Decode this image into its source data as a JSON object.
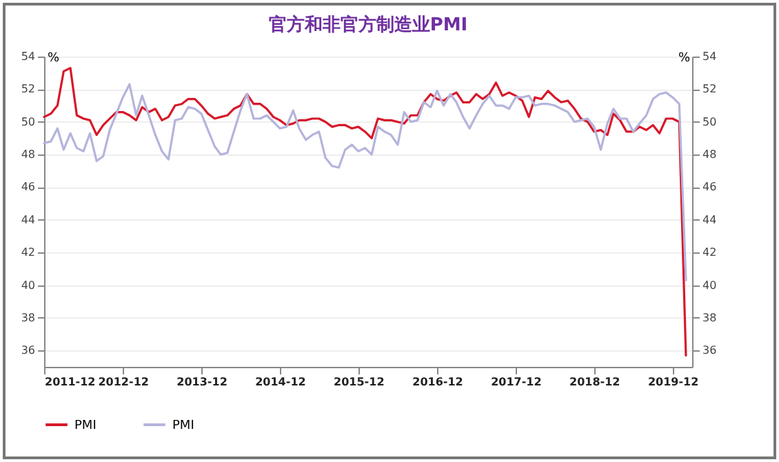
{
  "chart_data": {
    "type": "line",
    "title": "官方和非官方制造业PMI",
    "ylabel": "%",
    "y2label": "%",
    "x": [
      "2011-12",
      "2012-01",
      "2012-02",
      "2012-03",
      "2012-04",
      "2012-05",
      "2012-06",
      "2012-07",
      "2012-08",
      "2012-09",
      "2012-10",
      "2012-11",
      "2012-12",
      "2013-01",
      "2013-02",
      "2013-03",
      "2013-04",
      "2013-05",
      "2013-06",
      "2013-07",
      "2013-08",
      "2013-09",
      "2013-10",
      "2013-11",
      "2013-12",
      "2014-01",
      "2014-02",
      "2014-03",
      "2014-04",
      "2014-05",
      "2014-06",
      "2014-07",
      "2014-08",
      "2014-09",
      "2014-10",
      "2014-11",
      "2014-12",
      "2015-01",
      "2015-02",
      "2015-03",
      "2015-04",
      "2015-05",
      "2015-06",
      "2015-07",
      "2015-08",
      "2015-09",
      "2015-10",
      "2015-11",
      "2015-12",
      "2016-01",
      "2016-02",
      "2016-03",
      "2016-04",
      "2016-05",
      "2016-06",
      "2016-07",
      "2016-08",
      "2016-09",
      "2016-10",
      "2016-11",
      "2016-12",
      "2017-01",
      "2017-02",
      "2017-03",
      "2017-04",
      "2017-05",
      "2017-06",
      "2017-07",
      "2017-08",
      "2017-09",
      "2017-10",
      "2017-11",
      "2017-12",
      "2018-01",
      "2018-02",
      "2018-03",
      "2018-04",
      "2018-05",
      "2018-06",
      "2018-07",
      "2018-08",
      "2018-09",
      "2018-10",
      "2018-11",
      "2018-12",
      "2019-01",
      "2019-02",
      "2019-03",
      "2019-04",
      "2019-05",
      "2019-06",
      "2019-07",
      "2019-08",
      "2019-09",
      "2019-10",
      "2019-11",
      "2019-12",
      "2020-01",
      "2020-02"
    ],
    "series": [
      {
        "name": "PMI",
        "color": "#d7182a",
        "values": [
          50.3,
          50.5,
          51.0,
          53.1,
          53.3,
          50.4,
          50.2,
          50.1,
          49.2,
          49.8,
          50.2,
          50.6,
          50.6,
          50.4,
          50.1,
          50.9,
          50.6,
          50.8,
          50.1,
          50.3,
          51.0,
          51.1,
          51.4,
          51.4,
          51.0,
          50.5,
          50.2,
          50.3,
          50.4,
          50.8,
          51.0,
          51.7,
          51.1,
          51.1,
          50.8,
          50.3,
          50.1,
          49.8,
          49.9,
          50.1,
          50.1,
          50.2,
          50.2,
          50.0,
          49.7,
          49.8,
          49.8,
          49.6,
          49.7,
          49.4,
          49.0,
          50.2,
          50.1,
          50.1,
          50.0,
          49.9,
          50.4,
          50.4,
          51.2,
          51.7,
          51.4,
          51.3,
          51.6,
          51.8,
          51.2,
          51.2,
          51.7,
          51.4,
          51.7,
          52.4,
          51.6,
          51.8,
          51.6,
          51.3,
          50.3,
          51.5,
          51.4,
          51.9,
          51.5,
          51.2,
          51.3,
          50.8,
          50.2,
          50.0,
          49.4,
          49.5,
          49.2,
          50.5,
          50.1,
          49.4,
          49.4,
          49.7,
          49.5,
          49.8,
          49.3,
          50.2,
          50.2,
          50.0,
          35.7
        ]
      },
      {
        "name": "PMI",
        "color": "#b4b4dc",
        "values": [
          48.7,
          48.8,
          49.6,
          48.3,
          49.3,
          48.4,
          48.2,
          49.3,
          47.6,
          47.9,
          49.5,
          50.5,
          51.5,
          52.3,
          50.4,
          51.6,
          50.4,
          49.2,
          48.2,
          47.7,
          50.1,
          50.2,
          50.9,
          50.8,
          50.5,
          49.5,
          48.5,
          48.0,
          48.1,
          49.4,
          50.7,
          51.7,
          50.2,
          50.2,
          50.4,
          50.0,
          49.6,
          49.7,
          50.7,
          49.6,
          48.9,
          49.2,
          49.4,
          47.8,
          47.3,
          47.2,
          48.3,
          48.6,
          48.2,
          48.4,
          48.0,
          49.7,
          49.4,
          49.2,
          48.6,
          50.6,
          50.0,
          50.1,
          51.2,
          50.9,
          51.9,
          51.0,
          51.7,
          51.2,
          50.3,
          49.6,
          50.4,
          51.1,
          51.6,
          51.0,
          51.0,
          50.8,
          51.5,
          51.5,
          51.6,
          51.0,
          51.1,
          51.1,
          51.0,
          50.8,
          50.6,
          50.0,
          50.1,
          50.2,
          49.7,
          48.3,
          49.9,
          50.8,
          50.2,
          50.2,
          49.4,
          49.9,
          50.4,
          51.4,
          51.7,
          51.8,
          51.5,
          51.1,
          40.3
        ]
      }
    ],
    "xlim": [
      "2011-12",
      "2020-03"
    ],
    "xticks": [
      {
        "value": "2011-12",
        "label": "2011-12"
      },
      {
        "value": "2012-12",
        "label": "2012-12"
      },
      {
        "value": "2013-12",
        "label": "2013-12"
      },
      {
        "value": "2014-12",
        "label": "2014-12"
      },
      {
        "value": "2015-12",
        "label": "2015-12"
      },
      {
        "value": "2016-12",
        "label": "2016-12"
      },
      {
        "value": "2017-12",
        "label": "2017-12"
      },
      {
        "value": "2018-12",
        "label": "2018-12"
      },
      {
        "value": "2019-12",
        "label": "2019-12"
      }
    ],
    "ylim": [
      35,
      54
    ],
    "yticks": [
      36,
      38,
      40,
      42,
      44,
      46,
      48,
      50,
      52,
      54
    ],
    "y2lim": [
      35,
      54
    ],
    "y2ticks": [
      36,
      38,
      40,
      42,
      44,
      46,
      48,
      50,
      52,
      54
    ],
    "grid": "y",
    "legend": "bottom",
    "line_style": "solid",
    "marker": "none"
  }
}
